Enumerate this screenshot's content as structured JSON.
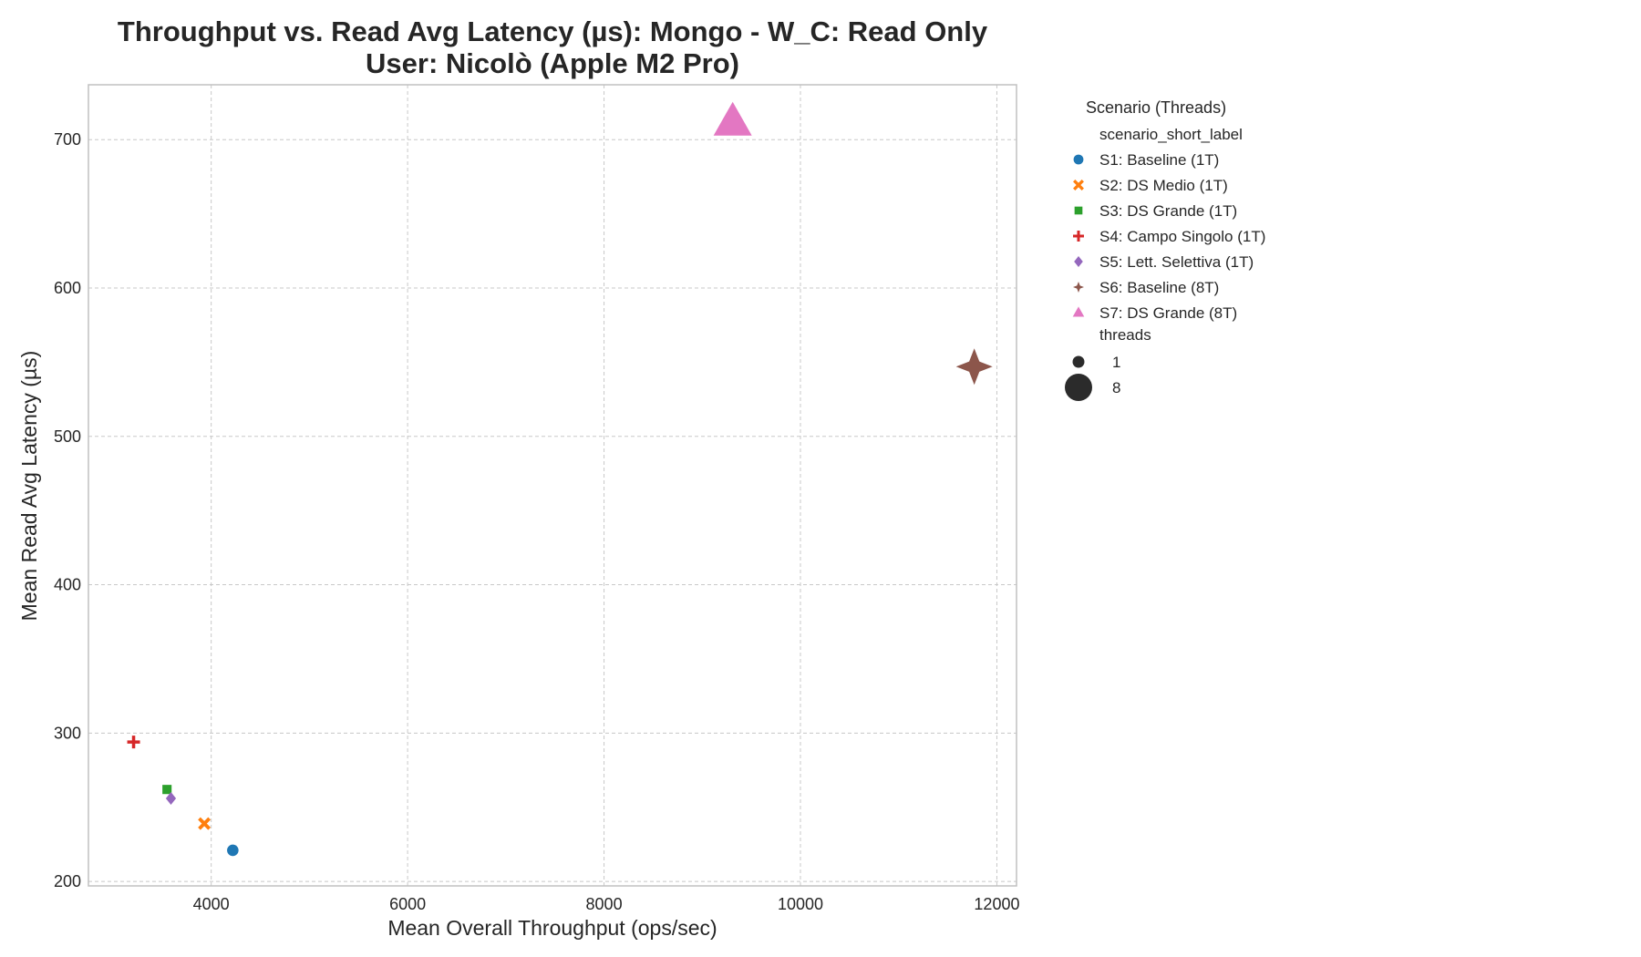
{
  "chart_data": {
    "type": "scatter",
    "title": "Throughput vs. Read Avg Latency (µs): Mongo - W_C: Read Only",
    "subtitle": "User: Nicolò (Apple M2 Pro)",
    "xlabel": "Mean Overall Throughput (ops/sec)",
    "ylabel": "Mean Read Avg Latency (µs)",
    "xlim": [
      2750,
      12200
    ],
    "ylim": [
      197,
      737
    ],
    "xticks": [
      4000,
      6000,
      8000,
      10000,
      12000
    ],
    "yticks": [
      200,
      300,
      400,
      500,
      600,
      700
    ],
    "grid": true,
    "legend_placement": "outside-right",
    "legend": {
      "title": "Scenario (Threads)",
      "hue_title": "scenario_short_label",
      "size_title": "threads",
      "size_entries": [
        "1",
        "8"
      ]
    },
    "series": [
      {
        "name": "S1: Baseline (1T)",
        "threads": 1,
        "marker": "circle",
        "color": "#1f77b4",
        "x": 4220,
        "y": 221
      },
      {
        "name": "S2: DS Medio (1T)",
        "threads": 1,
        "marker": "x",
        "color": "#ff7f0e",
        "x": 3930,
        "y": 239
      },
      {
        "name": "S3: DS Grande (1T)",
        "threads": 1,
        "marker": "square",
        "color": "#2ca02c",
        "x": 3550,
        "y": 262
      },
      {
        "name": "S4: Campo Singolo (1T)",
        "threads": 1,
        "marker": "plus",
        "color": "#d62728",
        "x": 3210,
        "y": 294
      },
      {
        "name": "S5: Lett. Selettiva (1T)",
        "threads": 1,
        "marker": "diamond",
        "color": "#9467bd",
        "x": 3590,
        "y": 256
      },
      {
        "name": "S6: Baseline (8T)",
        "threads": 8,
        "marker": "star4",
        "color": "#8c564b",
        "x": 11770,
        "y": 547
      },
      {
        "name": "S7: DS Grande (8T)",
        "threads": 8,
        "marker": "triangle",
        "color": "#e377c2",
        "x": 9310,
        "y": 712
      }
    ]
  }
}
